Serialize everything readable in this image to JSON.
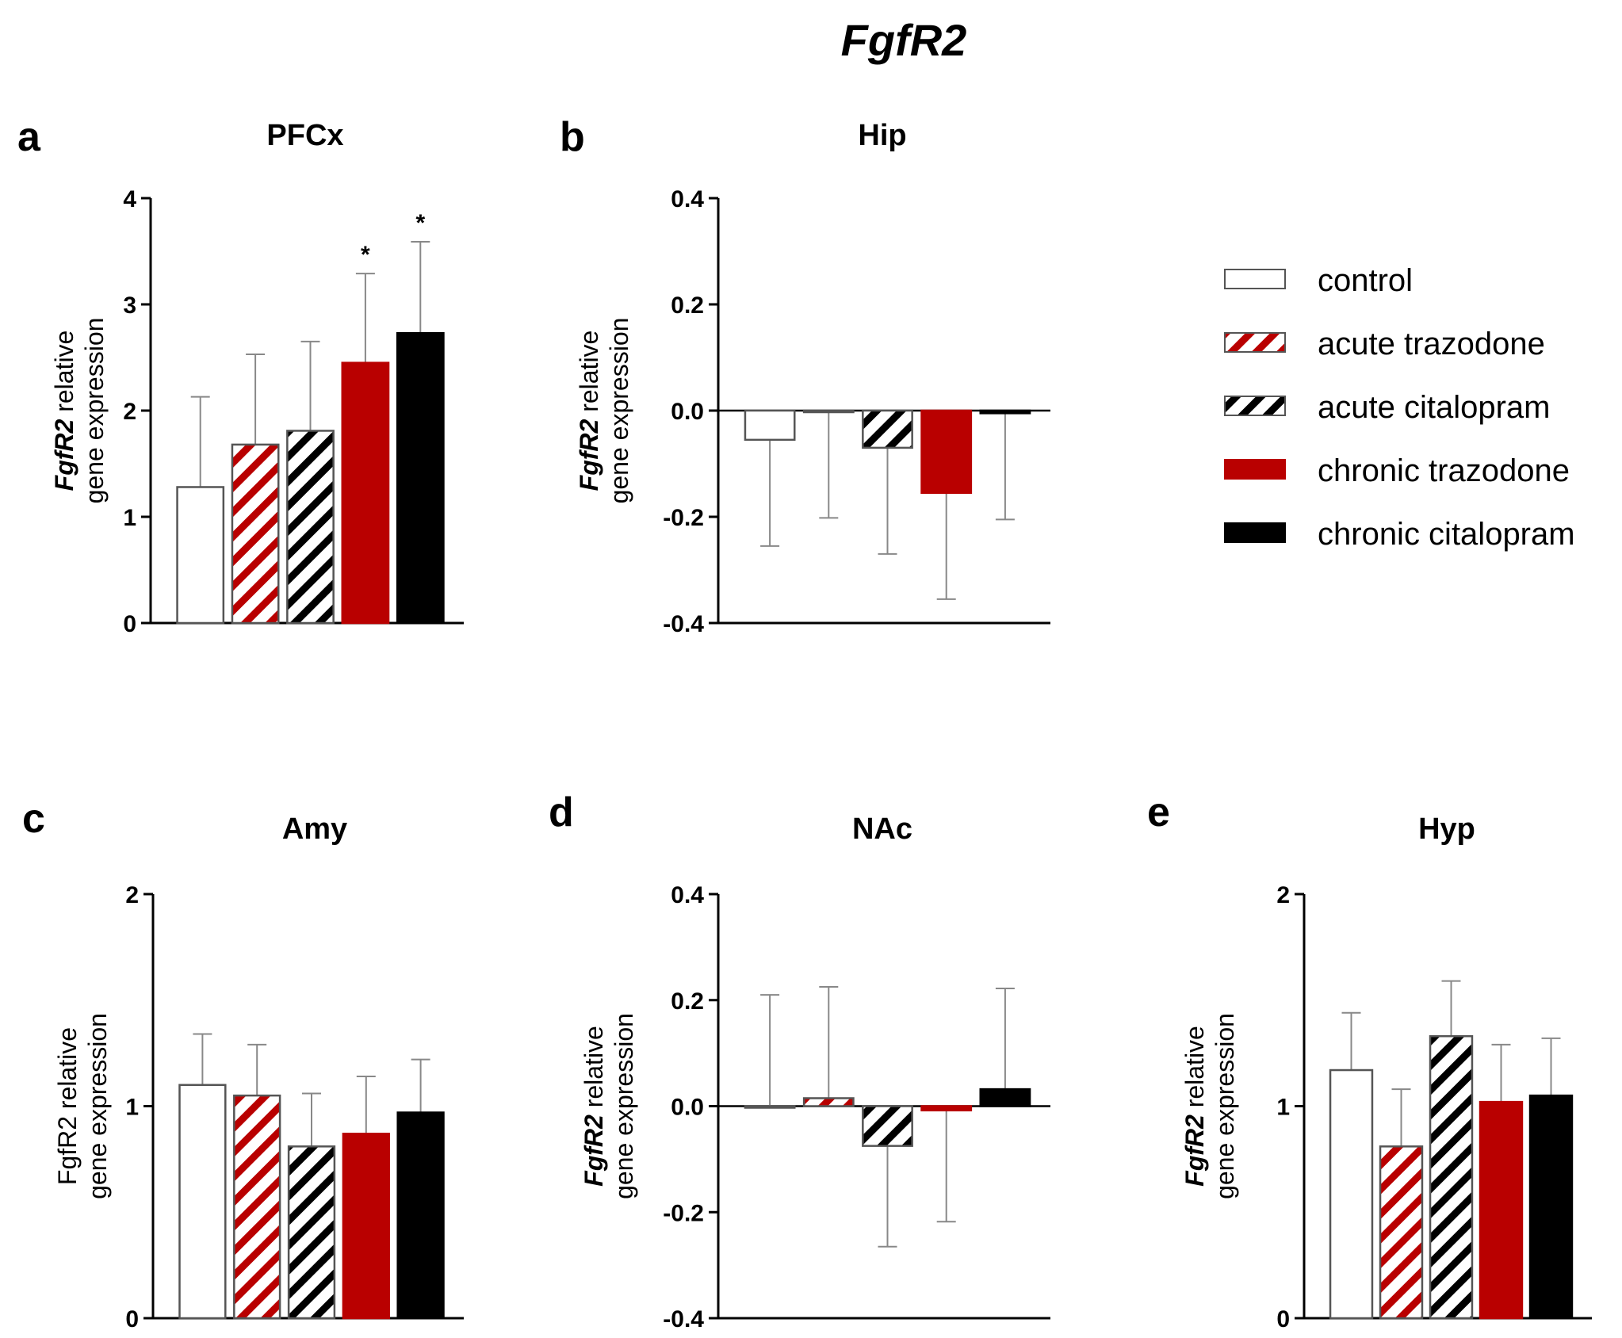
{
  "figure_title": "FgfR2",
  "legend": [
    {
      "label": "control",
      "fill": "white"
    },
    {
      "label": "acute trazodone",
      "fill": "hatch-red"
    },
    {
      "label": "acute citalopram",
      "fill": "hatch-black"
    },
    {
      "label": "chronic trazodone",
      "fill": "red"
    },
    {
      "label": "chronic citalopram",
      "fill": "black"
    }
  ],
  "colors": {
    "red": "#b90000",
    "black": "#000000",
    "white": "#ffffff",
    "error_bar": "#888888"
  },
  "chart_data": [
    {
      "type": "bar",
      "panel": "a",
      "title": "PFCx",
      "ylabel_italic": "FgfR2",
      "ylabel_rest": " relative",
      "ylabel_line2": "gene expression",
      "ylim": [
        0,
        4
      ],
      "yticks": [
        0,
        1,
        2,
        3,
        4
      ],
      "tick_labels": [
        "0",
        "1",
        "2",
        "3",
        "4"
      ],
      "values": [
        1.28,
        1.68,
        1.81,
        2.45,
        2.73
      ],
      "errors": [
        0.85,
        0.85,
        0.84,
        0.84,
        0.86
      ],
      "significance": [
        "",
        "",
        "",
        "*",
        "*"
      ]
    },
    {
      "type": "bar",
      "panel": "b",
      "title": "Hip",
      "ylabel_italic": "FgfR2",
      "ylabel_rest": " relative",
      "ylabel_line2": "gene expression",
      "ylim": [
        -0.4,
        0.4
      ],
      "yticks": [
        -0.4,
        -0.2,
        0.0,
        0.2,
        0.4
      ],
      "tick_labels": [
        "-0.4",
        "-0.2",
        "0.0",
        "0.2",
        "0.4"
      ],
      "values": [
        -0.055,
        -0.002,
        -0.07,
        -0.155,
        -0.005
      ],
      "errors": [
        0.2,
        0.2,
        0.2,
        0.2,
        0.2
      ],
      "significance": [
        "",
        "",
        "",
        "",
        ""
      ]
    },
    {
      "type": "bar",
      "panel": "c",
      "title": "Amy",
      "ylabel_italic": "",
      "ylabel_rest": "FgfR2 relative",
      "ylabel_line2": "gene expression",
      "ylim": [
        0,
        2
      ],
      "yticks": [
        0,
        1,
        2
      ],
      "tick_labels": [
        "0",
        "1",
        "2"
      ],
      "values": [
        1.1,
        1.05,
        0.81,
        0.87,
        0.97
      ],
      "errors": [
        0.24,
        0.24,
        0.25,
        0.27,
        0.25
      ],
      "significance": [
        "",
        "",
        "",
        "",
        ""
      ]
    },
    {
      "type": "bar",
      "panel": "d",
      "title": "NAc",
      "ylabel_italic": "FgfR2",
      "ylabel_rest": " relative",
      "ylabel_line2": "gene expression",
      "ylim": [
        -0.4,
        0.4
      ],
      "yticks": [
        -0.4,
        -0.2,
        0.0,
        0.2,
        0.4
      ],
      "tick_labels": [
        "-0.4",
        "-0.2",
        "0.0",
        "0.2",
        "0.4"
      ],
      "values": [
        0.0,
        0.015,
        -0.075,
        -0.008,
        0.032
      ],
      "errors": [
        0.21,
        0.21,
        0.19,
        0.21,
        0.19
      ],
      "significance": [
        "",
        "",
        "",
        "",
        ""
      ]
    },
    {
      "type": "bar",
      "panel": "e",
      "title": "Hyp",
      "ylabel_italic": "FgfR2",
      "ylabel_rest": " relative",
      "ylabel_line2": "gene expression",
      "ylim": [
        0,
        2
      ],
      "yticks": [
        0,
        1,
        2
      ],
      "tick_labels": [
        "0",
        "1",
        "2"
      ],
      "values": [
        1.17,
        0.81,
        1.33,
        1.02,
        1.05
      ],
      "errors": [
        0.27,
        0.27,
        0.26,
        0.27,
        0.27
      ],
      "significance": [
        "",
        "",
        "",
        "",
        ""
      ]
    }
  ]
}
